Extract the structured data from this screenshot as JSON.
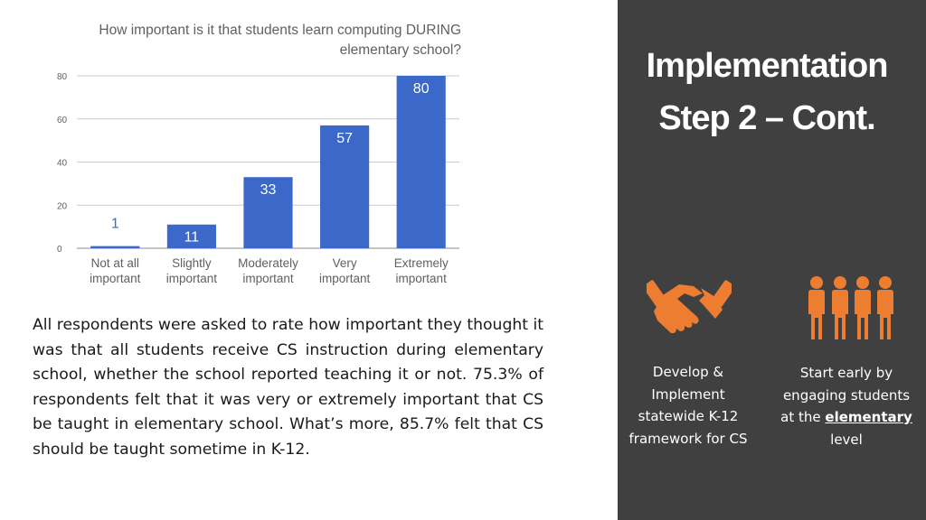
{
  "chart_data": {
    "type": "bar",
    "title": "How important is it that students learn computing DURING elementary school?",
    "title_lines": [
      "How important is it that students learn computing DURING",
      "elementary school?"
    ],
    "categories": [
      [
        "Not at all",
        "important"
      ],
      [
        "Slightly",
        "important"
      ],
      [
        "Moderately",
        "important"
      ],
      [
        "Very",
        "important"
      ],
      [
        "Extremely",
        "important"
      ]
    ],
    "values": [
      1,
      11,
      33,
      57,
      80
    ],
    "ylim": [
      0,
      80
    ],
    "yticks": [
      0,
      20,
      40,
      60,
      80
    ],
    "grid": true,
    "colors": {
      "bar": "#3b68c9",
      "label_inside": "#ffffff",
      "label_outside": "#3b68c9",
      "grid": "#cccccc",
      "axis_text": "#606060"
    }
  },
  "body_text": "All respondents were asked to rate how important they thought it was that all students receive CS instruction during elementary school, whether the school reported teaching it or not. 75.3% of respondents felt that it was very or extremely important that CS be taught in elementary school.  What’s more, 85.7% felt that CS should be taught sometime in K-12.",
  "panel": {
    "background": "#404040",
    "title_line1": "Implementation",
    "title_line2": "Step 2 – Cont.",
    "icon_color": "#ed7d31",
    "left_icon": "handshake-icon",
    "right_icon": "group-of-people-icon",
    "left_caption": [
      "Develop &",
      "Implement",
      "statewide K-12",
      "framework for CS"
    ],
    "right_caption_l1": "Start early by",
    "right_caption_l2": "engaging students",
    "right_caption_l3_pre": "at the ",
    "right_caption_l3_bold": "elementary",
    "right_caption_l4": "level"
  }
}
